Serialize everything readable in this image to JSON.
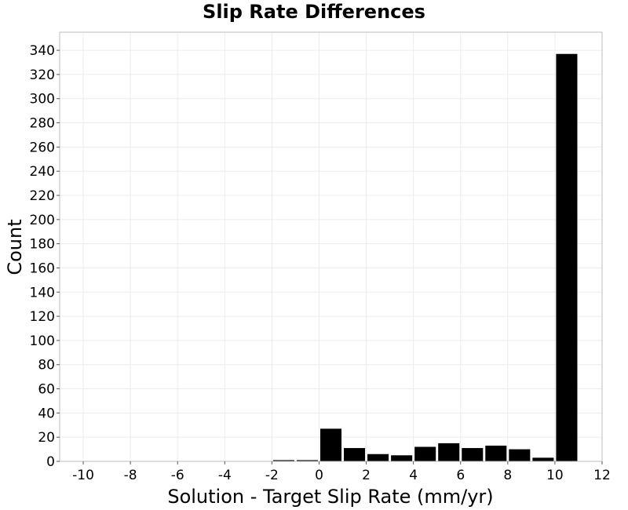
{
  "chart_data": {
    "type": "bar",
    "title": "Slip Rate Differences",
    "xlabel": "Solution - Target Slip Rate (mm/yr)",
    "ylabel": "Count",
    "xlim": [
      -11,
      12
    ],
    "ylim": [
      0,
      355
    ],
    "xticks": [
      -10,
      -8,
      -6,
      -4,
      -2,
      0,
      2,
      4,
      6,
      8,
      10,
      12
    ],
    "yticks": [
      0,
      20,
      40,
      60,
      80,
      100,
      120,
      140,
      160,
      180,
      200,
      220,
      240,
      260,
      280,
      300,
      320,
      340
    ],
    "grid": true,
    "bin_width": 1,
    "bars": [
      {
        "x": -1.5,
        "value": 1
      },
      {
        "x": -0.5,
        "value": 1
      },
      {
        "x": 0.5,
        "value": 27
      },
      {
        "x": 1.5,
        "value": 11
      },
      {
        "x": 2.5,
        "value": 6
      },
      {
        "x": 3.5,
        "value": 5
      },
      {
        "x": 4.5,
        "value": 12
      },
      {
        "x": 5.5,
        "value": 15
      },
      {
        "x": 6.5,
        "value": 11
      },
      {
        "x": 7.5,
        "value": 13
      },
      {
        "x": 8.5,
        "value": 10
      },
      {
        "x": 9.5,
        "value": 3
      },
      {
        "x": 10.5,
        "value": 337
      }
    ],
    "colors": {
      "bar": "#000000",
      "grid": "#ececec",
      "frame": "#bdbdbd"
    }
  }
}
